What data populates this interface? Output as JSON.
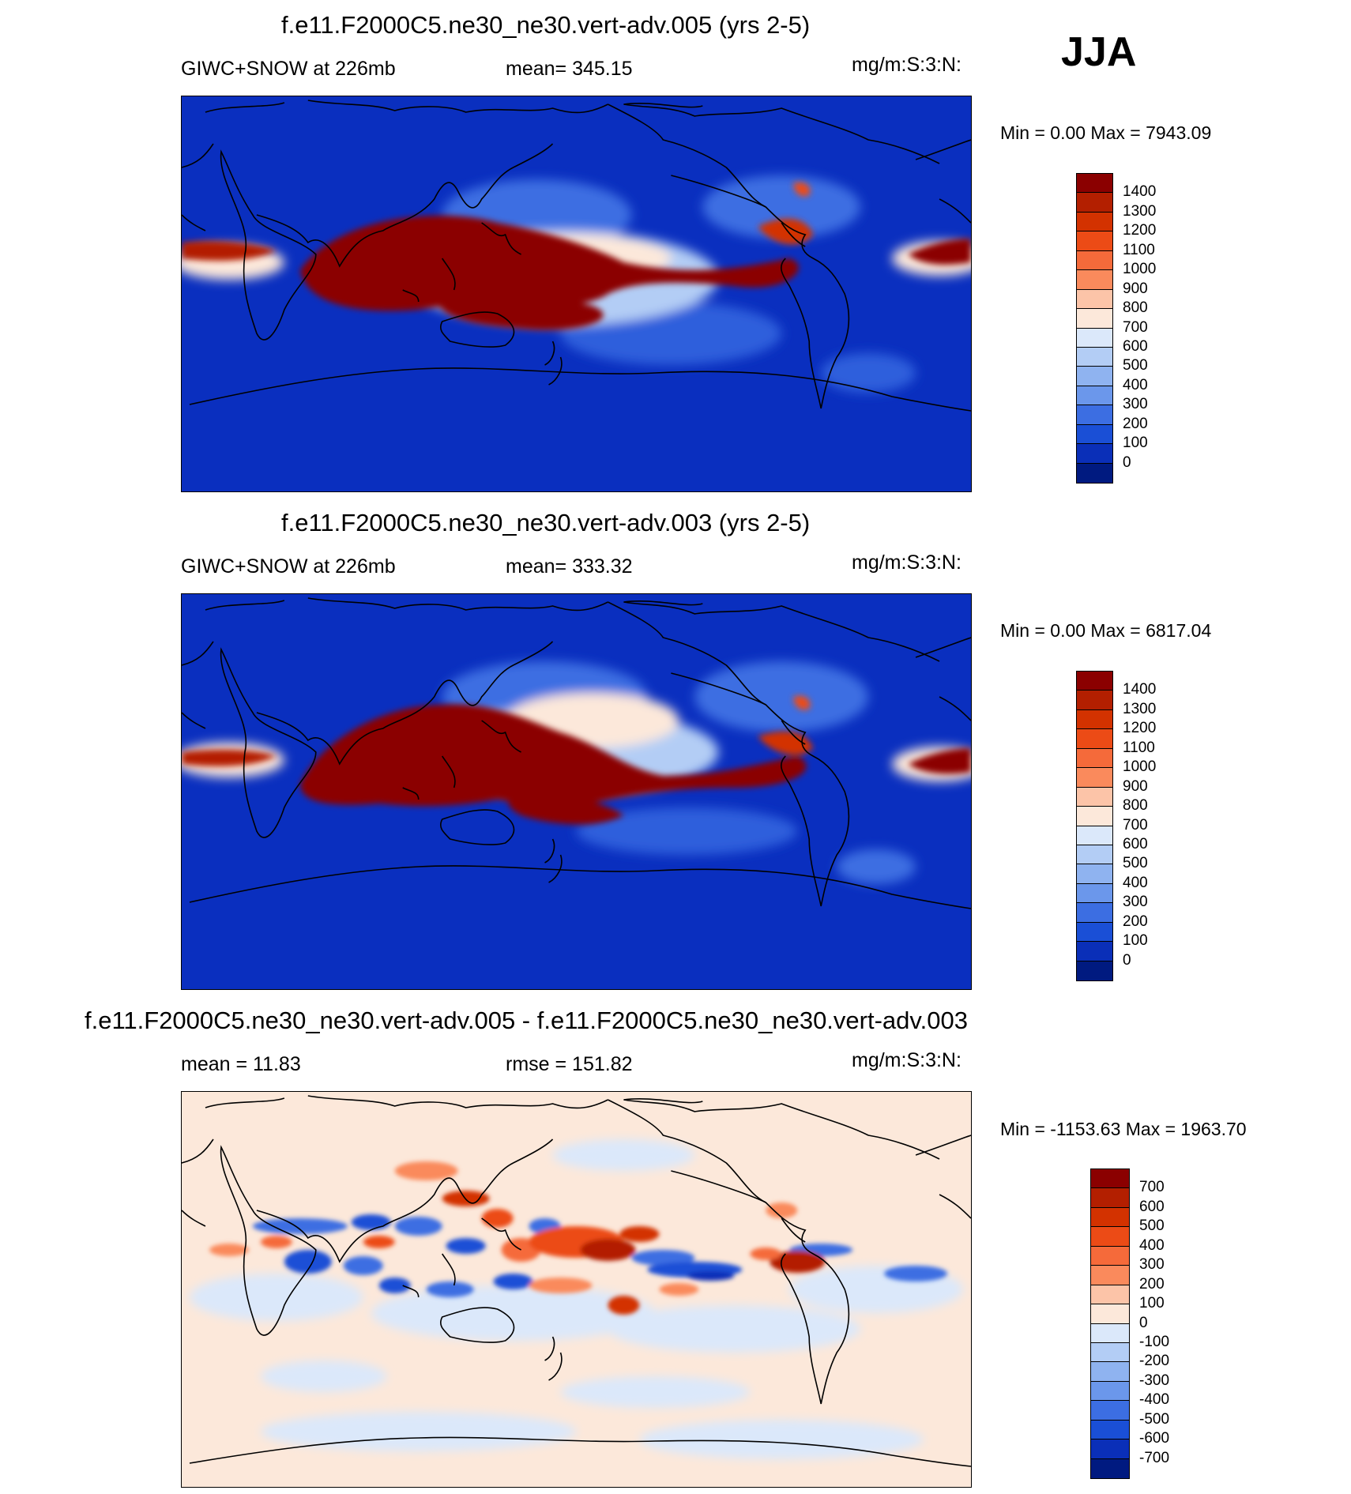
{
  "season": "JJA",
  "panels": [
    {
      "title": "f.e11.F2000C5.ne30_ne30.vert-adv.005 (yrs 2-5)",
      "field_label": "GIWC+SNOW at 226mb",
      "stat_label": "mean= 345.15",
      "units": "mg/m:S:3:N:",
      "minmax": "Min =   0.00 Max = 7943.09",
      "colorbar": {
        "labels": [
          "1400",
          "1300",
          "1200",
          "1100",
          "1000",
          "900",
          "800",
          "700",
          "600",
          "500",
          "400",
          "300",
          "200",
          "100",
          "0"
        ],
        "colors": [
          "#8b0000",
          "#b31f00",
          "#d33200",
          "#ec4b16",
          "#f56a3a",
          "#fa8a5c",
          "#fcc4a8",
          "#fce8da",
          "#dbe8fa",
          "#b3cdf5",
          "#8fb3f0",
          "#6b97eb",
          "#3c6ee2",
          "#1a4fd6",
          "#0a2fb8",
          "#001a80"
        ]
      },
      "map_style": "base005"
    },
    {
      "title": "f.e11.F2000C5.ne30_ne30.vert-adv.003 (yrs 2-5)",
      "field_label": "GIWC+SNOW at 226mb",
      "stat_label": "mean= 333.32",
      "units": "mg/m:S:3:N:",
      "minmax": "Min =   0.00 Max = 6817.04",
      "colorbar": {
        "labels": [
          "1400",
          "1300",
          "1200",
          "1100",
          "1000",
          "900",
          "800",
          "700",
          "600",
          "500",
          "400",
          "300",
          "200",
          "100",
          "0"
        ],
        "colors": [
          "#8b0000",
          "#b31f00",
          "#d33200",
          "#ec4b16",
          "#f56a3a",
          "#fa8a5c",
          "#fcc4a8",
          "#fce8da",
          "#dbe8fa",
          "#b3cdf5",
          "#8fb3f0",
          "#6b97eb",
          "#3c6ee2",
          "#1a4fd6",
          "#0a2fb8",
          "#001a80"
        ]
      },
      "map_style": "base003"
    },
    {
      "title": "f.e11.F2000C5.ne30_ne30.vert-adv.005 - f.e11.F2000C5.ne30_ne30.vert-adv.003",
      "field_label": "mean =  11.83",
      "stat_label": "rmse = 151.82",
      "units": "mg/m:S:3:N:",
      "minmax": "Min = -1153.63 Max = 1963.70",
      "colorbar": {
        "labels": [
          "700",
          "600",
          "500",
          "400",
          "300",
          "200",
          "100",
          "0",
          "-100",
          "-200",
          "-300",
          "-400",
          "-500",
          "-600",
          "-700"
        ],
        "colors": [
          "#8b0000",
          "#b31f00",
          "#d33200",
          "#ec4b16",
          "#f56a3a",
          "#fa8a5c",
          "#fcc4a8",
          "#fce8da",
          "#dbe8fa",
          "#b3cdf5",
          "#8fb3f0",
          "#6b97eb",
          "#3c6ee2",
          "#1a4fd6",
          "#0a2fb8",
          "#001a80"
        ]
      },
      "map_style": "diff"
    }
  ]
}
